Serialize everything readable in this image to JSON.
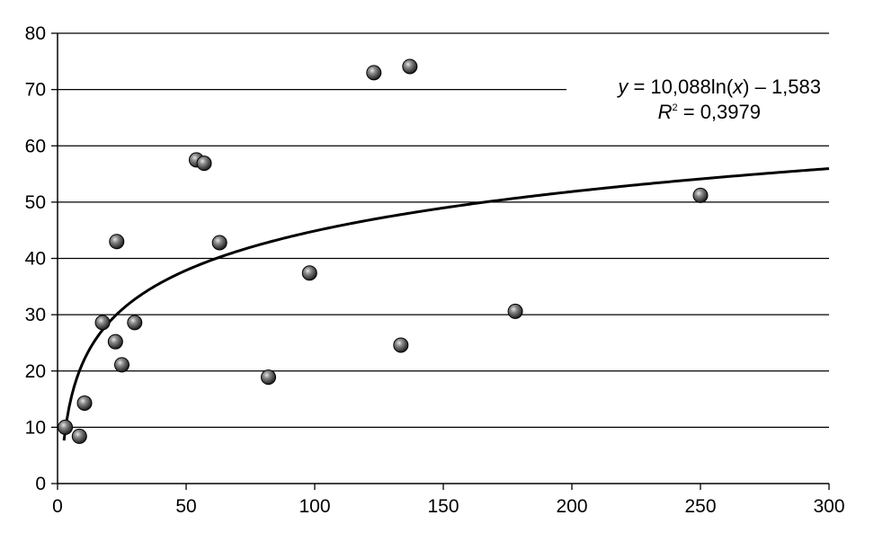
{
  "chart_data": {
    "type": "scatter",
    "title": "",
    "xlabel": "",
    "ylabel": "",
    "xlim": [
      0,
      300
    ],
    "ylim": [
      0,
      80
    ],
    "x_ticks": [
      0,
      50,
      100,
      150,
      200,
      250,
      300
    ],
    "y_ticks": [
      0,
      10,
      20,
      30,
      40,
      50,
      60,
      70,
      80
    ],
    "grid": "horizontal",
    "legend": "none",
    "series": [
      {
        "points": [
          [
            3,
            10.0
          ],
          [
            8.5,
            8.4
          ],
          [
            10.5,
            14.3
          ],
          [
            17.5,
            28.6
          ],
          [
            22.5,
            25.2
          ],
          [
            23,
            43.0
          ],
          [
            25,
            21.1
          ],
          [
            30,
            28.6
          ],
          [
            54,
            57.5
          ],
          [
            57,
            56.9
          ],
          [
            63,
            42.8
          ],
          [
            82,
            18.9
          ],
          [
            98,
            37.4
          ],
          [
            123,
            73.0
          ],
          [
            133.5,
            24.6
          ],
          [
            137,
            74.1
          ],
          [
            178,
            30.6
          ],
          [
            250,
            51.2
          ]
        ]
      }
    ],
    "trendline": {
      "type": "logarithmic",
      "a": 10.088,
      "b": -1.583,
      "x_range": [
        2.5,
        300
      ],
      "equation_parts": {
        "y_var": "y",
        "equation_mid": " = 10,088ln(",
        "x_var": "x",
        "equation_end": ") – 1,583",
        "r_var": "R",
        "r_sup": "2",
        "r_value": " = 0,3979"
      }
    },
    "colors": {
      "marker_fill": "#5a5a5a",
      "marker_stroke": "#000000",
      "trendline": "#000000",
      "grid": "#000000",
      "axis": "#000000"
    }
  }
}
